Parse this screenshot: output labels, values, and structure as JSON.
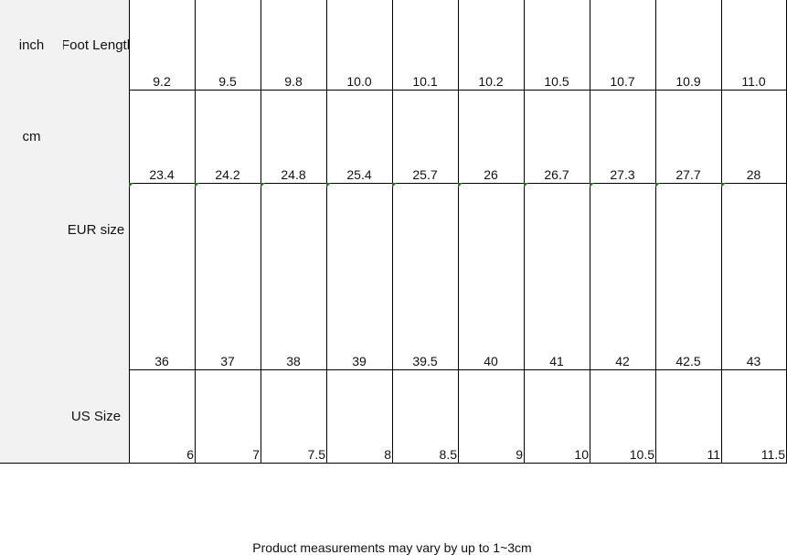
{
  "table": {
    "rows": [
      {
        "unit": "inch",
        "label": "Foot Length",
        "values": [
          "9.2",
          "9.5",
          "9.8",
          "10.0",
          "10.1",
          "10.2",
          "10.5",
          "10.7",
          "10.9",
          "11.0"
        ]
      },
      {
        "unit": "cm",
        "values": [
          "23.4",
          "24.2",
          "24.8",
          "25.4",
          "25.7",
          "26",
          "26.7",
          "27.3",
          "27.7",
          "28"
        ]
      },
      {
        "label": "EUR size",
        "values": [
          "36",
          "37",
          "38",
          "39",
          "39.5",
          "40",
          "41",
          "42",
          "42.5",
          "43"
        ]
      },
      {
        "label": "US Size",
        "values": [
          "6",
          "7",
          "7.5",
          "8",
          "8.5",
          "9",
          "10",
          "10.5",
          "11",
          "11.5"
        ]
      }
    ]
  },
  "note": "Product measurements may vary by up to 1~3cm"
}
